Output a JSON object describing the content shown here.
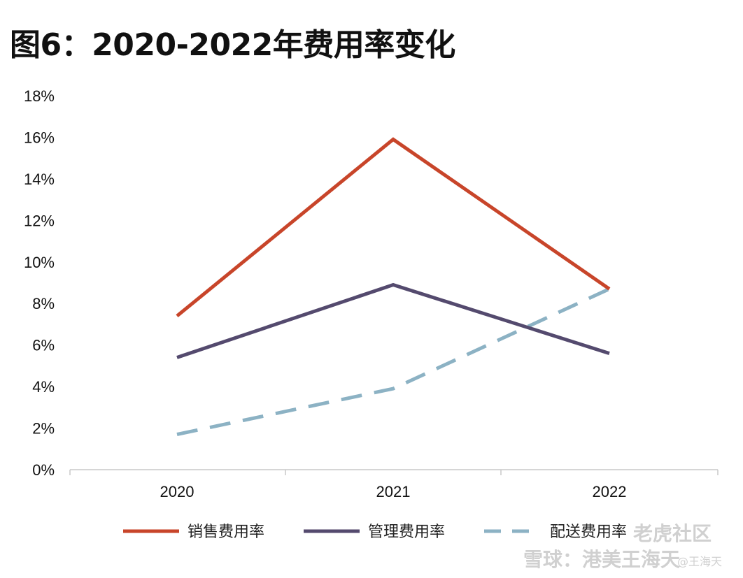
{
  "title": "图6：2020-2022年费用率变化",
  "chart_data": {
    "type": "line",
    "categories": [
      "2020",
      "2021",
      "2022"
    ],
    "series": [
      {
        "name": "销售费用率",
        "values": [
          7.4,
          15.9,
          8.7
        ],
        "color": "#c8452a",
        "dash": "solid"
      },
      {
        "name": "管理费用率",
        "values": [
          5.4,
          8.9,
          5.6
        ],
        "color": "#544a6e",
        "dash": "solid"
      },
      {
        "name": "配送费用率",
        "values": [
          1.7,
          3.9,
          8.7
        ],
        "color": "#8cb2c4",
        "dash": "dashed"
      }
    ],
    "ylim": [
      0,
      18
    ],
    "yticks": [
      "0%",
      "2%",
      "4%",
      "6%",
      "8%",
      "10%",
      "12%",
      "14%",
      "16%",
      "18%"
    ],
    "xlabel": "",
    "ylabel": "",
    "grid": false,
    "legend_position": "bottom"
  },
  "watermark": {
    "line1": "老虎社区",
    "line2": "雪球：港美王海天",
    "line3": "@王海天"
  }
}
